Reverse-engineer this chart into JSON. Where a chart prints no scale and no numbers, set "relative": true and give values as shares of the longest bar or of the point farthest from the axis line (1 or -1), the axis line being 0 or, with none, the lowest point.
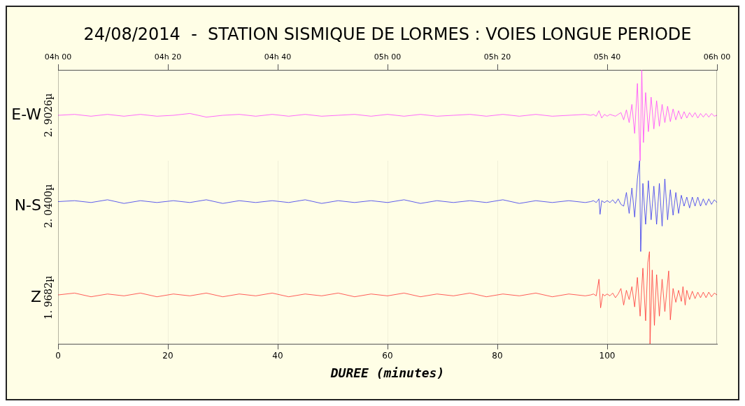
{
  "chart_data": [
    {
      "type": "line",
      "title": "24/08/2014  -  STATION SISMIQUE DE LORMES : VOIES LONGUE PERIODE",
      "ylabel": "E-W",
      "annotations": [
        "2. 9026µ"
      ],
      "relative": true,
      "color": "#ff44ff",
      "tick_labels": "x",
      "legend": false,
      "xlim": [
        0,
        120
      ],
      "x2lim": [
        "2014-08-24T04:00",
        "2014-08-24T06:00"
      ],
      "x2ticks": [
        {
          "value": "2014-08-24T04:00",
          "label": "04h 00"
        },
        {
          "value": "2014-08-24T04:20",
          "label": "04h 20"
        },
        {
          "value": "2014-08-24T04:40",
          "label": "04h 40"
        },
        {
          "value": "2014-08-24T05:00",
          "label": "05h 00"
        },
        {
          "value": "2014-08-24T05:20",
          "label": "05h 20"
        },
        {
          "value": "2014-08-24T05:40",
          "label": "05h 40"
        },
        {
          "value": "2014-08-24T06:00",
          "label": "06h 00"
        }
      ],
      "x": [
        0,
        3,
        6,
        9,
        12,
        15,
        18,
        21,
        24,
        27,
        30,
        33,
        36,
        39,
        42,
        45,
        48,
        51,
        54,
        57,
        60,
        63,
        66,
        69,
        72,
        75,
        78,
        81,
        84,
        87,
        90,
        93,
        96,
        97,
        97.5,
        98,
        98.5,
        99,
        99.5,
        100,
        100.5,
        101,
        101.5,
        102,
        102.5,
        103,
        103.5,
        104,
        104.5,
        105,
        105.5,
        106,
        106.3,
        106.6,
        107,
        107.5,
        108,
        108.5,
        109,
        109.5,
        110,
        110.5,
        111,
        111.5,
        112,
        112.5,
        113,
        113.5,
        114,
        114.5,
        115,
        115.5,
        116,
        116.5,
        117,
        117.5,
        118,
        118.5,
        119,
        119.5,
        120
      ],
      "values": [
        0.5,
        0.51,
        0.49,
        0.51,
        0.49,
        0.51,
        0.49,
        0.5,
        0.52,
        0.48,
        0.5,
        0.51,
        0.49,
        0.51,
        0.49,
        0.51,
        0.49,
        0.5,
        0.51,
        0.49,
        0.51,
        0.49,
        0.51,
        0.49,
        0.5,
        0.51,
        0.49,
        0.51,
        0.49,
        0.51,
        0.49,
        0.5,
        0.51,
        0.5,
        0.51,
        0.49,
        0.55,
        0.47,
        0.51,
        0.49,
        0.51,
        0.5,
        0.49,
        0.51,
        0.53,
        0.45,
        0.56,
        0.42,
        0.62,
        0.3,
        0.85,
        0,
        1,
        0.2,
        0.75,
        0.32,
        0.7,
        0.35,
        0.66,
        0.38,
        0.62,
        0.42,
        0.6,
        0.43,
        0.57,
        0.45,
        0.55,
        0.46,
        0.54,
        0.47,
        0.53,
        0.48,
        0.53,
        0.47,
        0.52,
        0.48,
        0.52,
        0.48,
        0.52,
        0.49,
        0.5
      ]
    },
    {
      "type": "line",
      "ylabel": "N-S",
      "annotations": [
        "2. 0400µ"
      ],
      "relative": true,
      "color": "#3333ee",
      "grid": "x",
      "tick_labels": false,
      "legend": false,
      "xlim": [
        0,
        120
      ],
      "xticks": [
        0,
        20,
        40,
        60,
        80,
        100
      ],
      "x": [
        0,
        3,
        6,
        9,
        12,
        15,
        18,
        21,
        24,
        27,
        30,
        33,
        36,
        39,
        42,
        45,
        48,
        51,
        54,
        57,
        60,
        63,
        66,
        69,
        72,
        75,
        78,
        81,
        84,
        87,
        90,
        93,
        96,
        97,
        97.5,
        98,
        98.5,
        98.7,
        99,
        99.5,
        100,
        100.5,
        101,
        101.5,
        102,
        102.5,
        103,
        103.5,
        104,
        104.5,
        105,
        105.5,
        105.9,
        106.1,
        106.5,
        107,
        107.5,
        108,
        108.5,
        109,
        109.5,
        110,
        110.5,
        111,
        111.5,
        112,
        112.5,
        113,
        113.5,
        114,
        114.5,
        115,
        115.5,
        116,
        116.5,
        117,
        117.5,
        118,
        118.5,
        119,
        119.5,
        120
      ],
      "values": [
        0.55,
        0.56,
        0.54,
        0.57,
        0.53,
        0.56,
        0.54,
        0.56,
        0.54,
        0.57,
        0.53,
        0.56,
        0.54,
        0.56,
        0.54,
        0.57,
        0.53,
        0.56,
        0.54,
        0.56,
        0.54,
        0.57,
        0.53,
        0.56,
        0.54,
        0.56,
        0.54,
        0.57,
        0.53,
        0.56,
        0.54,
        0.56,
        0.54,
        0.55,
        0.56,
        0.54,
        0.58,
        0.41,
        0.56,
        0.54,
        0.56,
        0.54,
        0.57,
        0.53,
        0.58,
        0.52,
        0.5,
        0.65,
        0.42,
        0.7,
        0.38,
        0.8,
        1,
        0,
        0.75,
        0.3,
        0.78,
        0.35,
        0.72,
        0.3,
        0.75,
        0.28,
        0.8,
        0.35,
        0.68,
        0.4,
        0.65,
        0.42,
        0.62,
        0.5,
        0.6,
        0.48,
        0.6,
        0.5,
        0.6,
        0.5,
        0.58,
        0.51,
        0.58,
        0.52,
        0.57,
        0.54
      ]
    },
    {
      "type": "line",
      "ylabel": "Z",
      "annotations": [
        "1. 9682µ"
      ],
      "xlabel": "DUREE (minutes)",
      "relative": true,
      "color": "#ff3333",
      "grid": "x",
      "legend": false,
      "xlim": [
        0,
        120
      ],
      "xticks": [
        0,
        20,
        40,
        60,
        80,
        100
      ],
      "x": [
        0,
        3,
        6,
        9,
        12,
        15,
        18,
        21,
        24,
        27,
        30,
        33,
        36,
        39,
        42,
        45,
        48,
        51,
        54,
        57,
        60,
        63,
        66,
        69,
        72,
        75,
        78,
        81,
        84,
        87,
        90,
        93,
        96,
        97,
        97.5,
        98,
        98.5,
        98.8,
        99.2,
        99.5,
        100,
        100.5,
        101,
        101.5,
        102,
        102.5,
        103,
        103.5,
        104,
        104.5,
        105,
        105.5,
        106,
        106.5,
        107,
        107.4,
        107.7,
        107.8,
        108.2,
        108.6,
        109,
        109.5,
        110,
        110.5,
        111.2,
        111.5,
        112,
        112.5,
        113,
        113.5,
        113.8,
        114.2,
        114.5,
        115,
        115.5,
        116,
        116.5,
        117,
        117.5,
        118,
        118.5,
        119,
        119.5,
        120
      ],
      "values": [
        0.53,
        0.55,
        0.51,
        0.54,
        0.52,
        0.55,
        0.51,
        0.54,
        0.52,
        0.55,
        0.51,
        0.54,
        0.52,
        0.55,
        0.51,
        0.54,
        0.52,
        0.55,
        0.51,
        0.54,
        0.52,
        0.55,
        0.51,
        0.54,
        0.52,
        0.55,
        0.51,
        0.54,
        0.52,
        0.55,
        0.51,
        0.54,
        0.52,
        0.53,
        0.54,
        0.52,
        0.7,
        0.39,
        0.54,
        0.52,
        0.54,
        0.52,
        0.55,
        0.5,
        0.54,
        0.6,
        0.42,
        0.58,
        0.48,
        0.62,
        0.4,
        0.72,
        0.3,
        0.82,
        0.25,
        0.88,
        1,
        0,
        0.8,
        0.2,
        0.75,
        0.3,
        0.7,
        0.35,
        0.79,
        0.26,
        0.6,
        0.45,
        0.58,
        0.46,
        0.62,
        0.42,
        0.58,
        0.48,
        0.57,
        0.49,
        0.56,
        0.5,
        0.56,
        0.5,
        0.56,
        0.51,
        0.55,
        0.53
      ]
    }
  ]
}
